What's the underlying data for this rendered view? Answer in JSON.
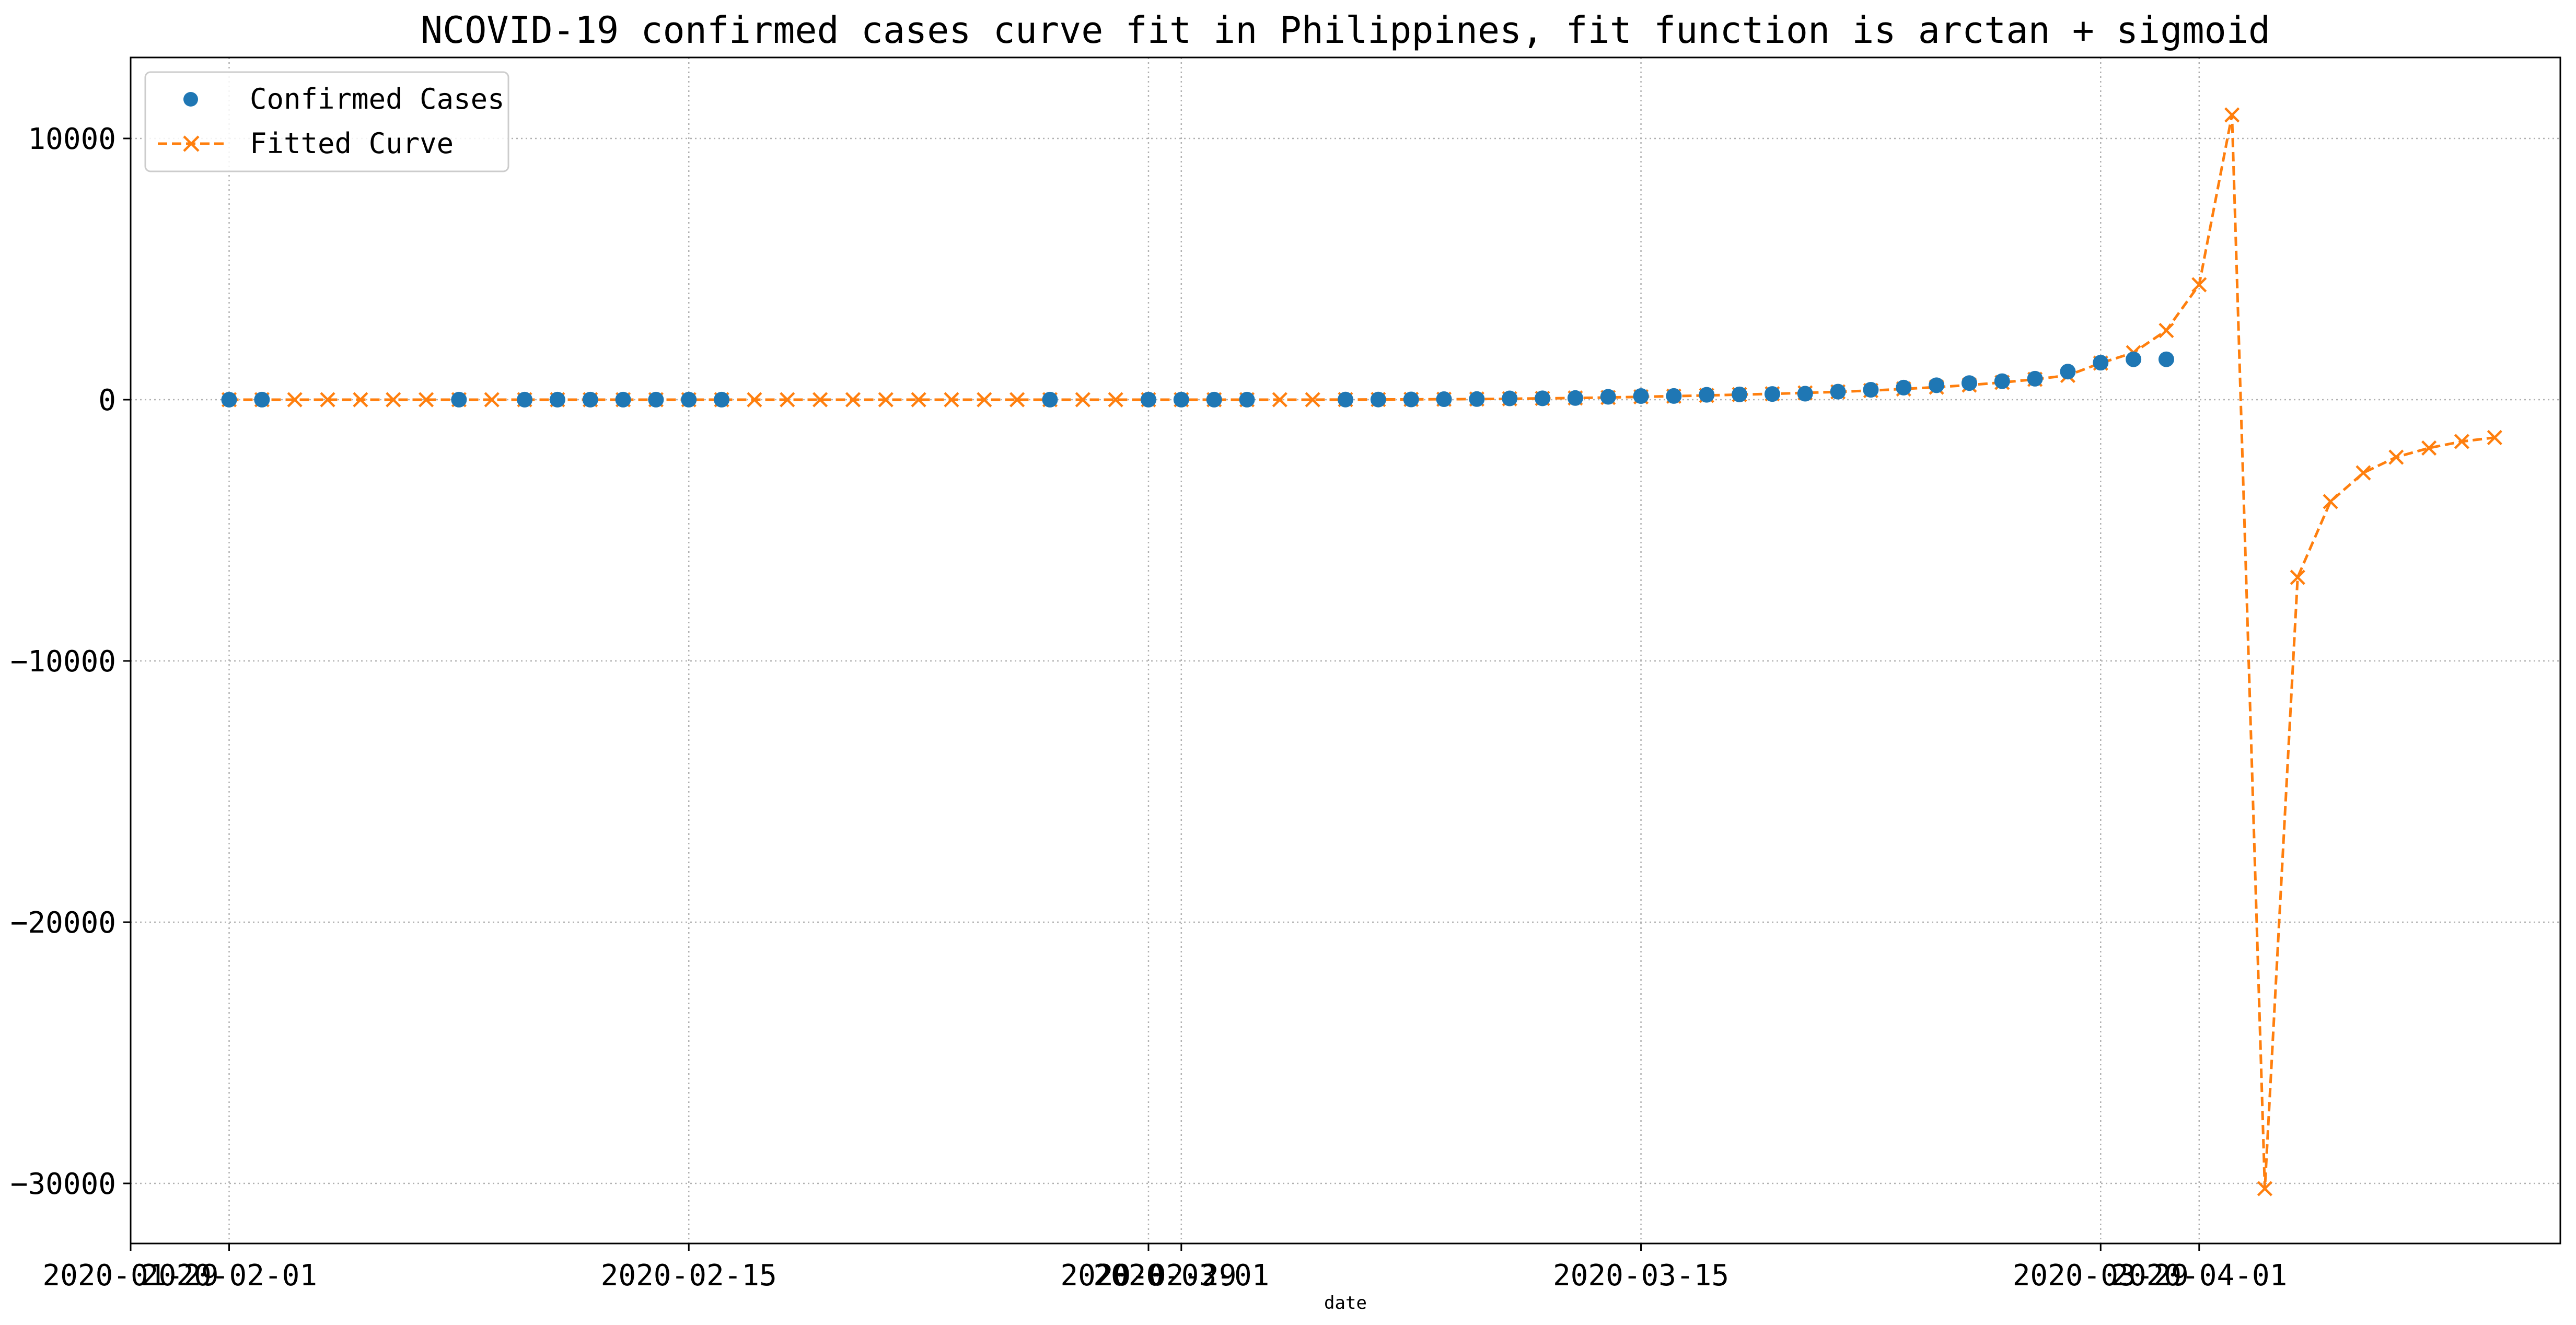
{
  "chart_data": {
    "type": "line",
    "title": "NCOVID-19 confirmed cases curve fit in Philippines, fit function is arctan + sigmoid",
    "xlabel": "date",
    "ylabel": "",
    "xlim": [
      "2020-01-29",
      "2020-04-12"
    ],
    "ylim": [
      -32300,
      13100
    ],
    "grid": true,
    "legend_position": "top-left",
    "x_tick_labels": [
      {
        "date": "2020-01-29",
        "label": "2020-01-29"
      },
      {
        "date": "2020-02-01",
        "label": "2020-02-01"
      },
      {
        "date": "2020-02-15",
        "label": "2020-02-15"
      },
      {
        "date": "2020-02-29",
        "label": "2020-02-29"
      },
      {
        "date": "2020-03-01",
        "label": "2020-03-01"
      },
      {
        "date": "2020-03-15",
        "label": "2020-03-15"
      },
      {
        "date": "2020-03-29",
        "label": "2020-03-29"
      },
      {
        "date": "2020-04-01",
        "label": "2020-04-01"
      }
    ],
    "y_tick_labels": [
      {
        "value": 10000,
        "label": "10000"
      },
      {
        "value": 0,
        "label": "0"
      },
      {
        "value": -10000,
        "label": "−10000"
      },
      {
        "value": -20000,
        "label": "−20000"
      },
      {
        "value": -30000,
        "label": "−30000"
      }
    ],
    "series": [
      {
        "name": "Confirmed Cases",
        "style": "markers",
        "marker": "circle",
        "color": "#1f77b4",
        "points": [
          [
            "2020-02-01",
            1
          ],
          [
            "2020-02-02",
            2
          ],
          [
            "2020-02-08",
            3
          ],
          [
            "2020-02-10",
            3
          ],
          [
            "2020-02-11",
            3
          ],
          [
            "2020-02-12",
            3
          ],
          [
            "2020-02-13",
            3
          ],
          [
            "2020-02-14",
            3
          ],
          [
            "2020-02-15",
            3
          ],
          [
            "2020-02-16",
            3
          ],
          [
            "2020-02-26",
            3
          ],
          [
            "2020-02-29",
            3
          ],
          [
            "2020-03-01",
            3
          ],
          [
            "2020-03-02",
            3
          ],
          [
            "2020-03-03",
            3
          ],
          [
            "2020-03-06",
            5
          ],
          [
            "2020-03-07",
            6
          ],
          [
            "2020-03-08",
            10
          ],
          [
            "2020-03-09",
            20
          ],
          [
            "2020-03-10",
            24
          ],
          [
            "2020-03-11",
            49
          ],
          [
            "2020-03-12",
            52
          ],
          [
            "2020-03-13",
            64
          ],
          [
            "2020-03-14",
            111
          ],
          [
            "2020-03-15",
            140
          ],
          [
            "2020-03-16",
            142
          ],
          [
            "2020-03-17",
            187
          ],
          [
            "2020-03-18",
            202
          ],
          [
            "2020-03-19",
            217
          ],
          [
            "2020-03-20",
            230
          ],
          [
            "2020-03-21",
            307
          ],
          [
            "2020-03-22",
            380
          ],
          [
            "2020-03-23",
            462
          ],
          [
            "2020-03-24",
            552
          ],
          [
            "2020-03-25",
            636
          ],
          [
            "2020-03-26",
            707
          ],
          [
            "2020-03-27",
            803
          ],
          [
            "2020-03-28",
            1075
          ],
          [
            "2020-03-29",
            1418
          ],
          [
            "2020-03-30",
            1546
          ],
          [
            "2020-03-31",
            1546
          ]
        ]
      },
      {
        "name": "Fitted Curve",
        "style": "dashed-line-with-markers",
        "marker": "x",
        "color": "#ff7f0e",
        "points": [
          [
            "2020-02-01",
            0
          ],
          [
            "2020-02-02",
            0
          ],
          [
            "2020-02-03",
            0
          ],
          [
            "2020-02-04",
            0
          ],
          [
            "2020-02-05",
            0
          ],
          [
            "2020-02-06",
            0
          ],
          [
            "2020-02-07",
            0
          ],
          [
            "2020-02-08",
            0
          ],
          [
            "2020-02-09",
            0
          ],
          [
            "2020-02-10",
            0
          ],
          [
            "2020-02-11",
            0
          ],
          [
            "2020-02-12",
            0
          ],
          [
            "2020-02-13",
            0
          ],
          [
            "2020-02-14",
            0
          ],
          [
            "2020-02-15",
            0
          ],
          [
            "2020-02-16",
            0
          ],
          [
            "2020-02-17",
            0
          ],
          [
            "2020-02-18",
            0
          ],
          [
            "2020-02-19",
            0
          ],
          [
            "2020-02-20",
            0
          ],
          [
            "2020-02-21",
            0
          ],
          [
            "2020-02-22",
            0
          ],
          [
            "2020-02-23",
            0
          ],
          [
            "2020-02-24",
            0
          ],
          [
            "2020-02-25",
            0
          ],
          [
            "2020-02-26",
            0
          ],
          [
            "2020-02-27",
            0
          ],
          [
            "2020-02-28",
            0
          ],
          [
            "2020-02-29",
            0
          ],
          [
            "2020-03-01",
            0
          ],
          [
            "2020-03-02",
            0
          ],
          [
            "2020-03-03",
            0
          ],
          [
            "2020-03-04",
            0
          ],
          [
            "2020-03-05",
            0
          ],
          [
            "2020-03-06",
            5
          ],
          [
            "2020-03-07",
            8
          ],
          [
            "2020-03-08",
            12
          ],
          [
            "2020-03-09",
            18
          ],
          [
            "2020-03-10",
            25
          ],
          [
            "2020-03-11",
            35
          ],
          [
            "2020-03-12",
            50
          ],
          [
            "2020-03-13",
            65
          ],
          [
            "2020-03-14",
            85
          ],
          [
            "2020-03-15",
            110
          ],
          [
            "2020-03-16",
            135
          ],
          [
            "2020-03-17",
            165
          ],
          [
            "2020-03-18",
            195
          ],
          [
            "2020-03-19",
            225
          ],
          [
            "2020-03-20",
            260
          ],
          [
            "2020-03-21",
            300
          ],
          [
            "2020-03-22",
            350
          ],
          [
            "2020-03-23",
            410
          ],
          [
            "2020-03-24",
            480
          ],
          [
            "2020-03-25",
            560
          ],
          [
            "2020-03-26",
            660
          ],
          [
            "2020-03-27",
            780
          ],
          [
            "2020-03-28",
            930
          ],
          [
            "2020-03-29",
            1400
          ],
          [
            "2020-03-30",
            1800
          ],
          [
            "2020-03-31",
            2650
          ],
          [
            "2020-04-01",
            4400
          ],
          [
            "2020-04-02",
            10900
          ],
          [
            "2020-04-03",
            -30200
          ],
          [
            "2020-04-04",
            -6800
          ],
          [
            "2020-04-05",
            -3900
          ],
          [
            "2020-04-06",
            -2800
          ],
          [
            "2020-04-07",
            -2200
          ],
          [
            "2020-04-08",
            -1850
          ],
          [
            "2020-04-09",
            -1600
          ],
          [
            "2020-04-10",
            -1450
          ]
        ]
      }
    ]
  }
}
